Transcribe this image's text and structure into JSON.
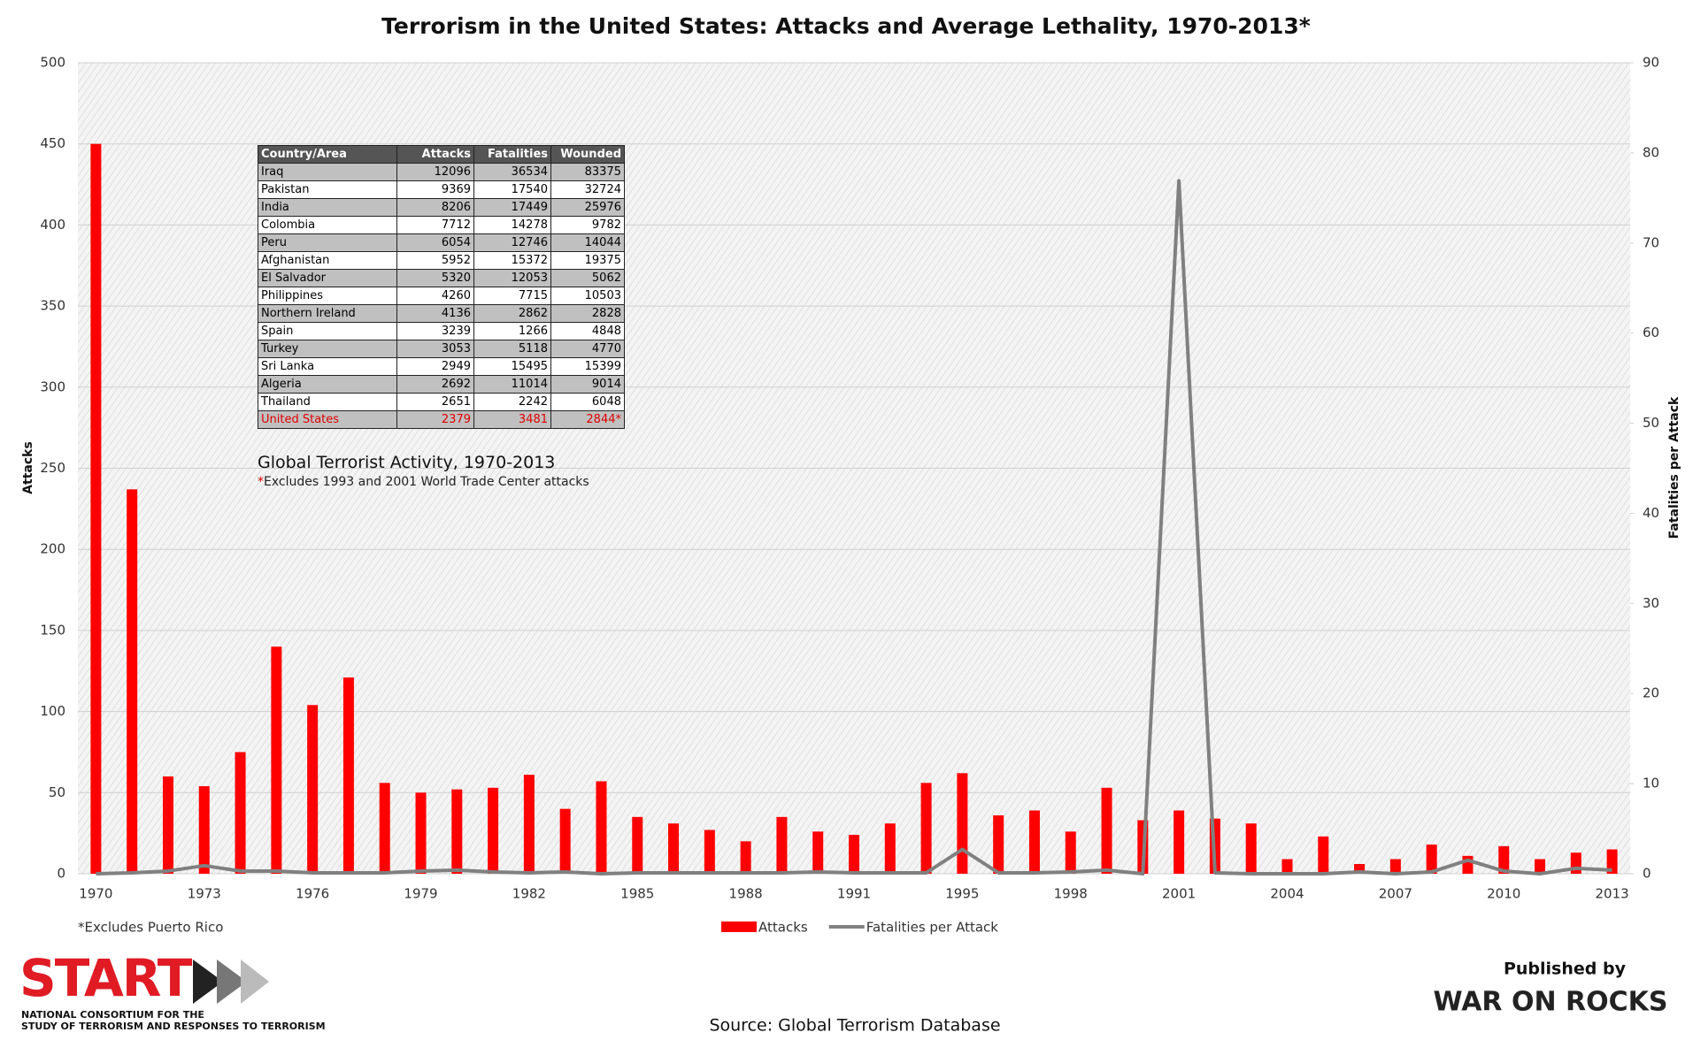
{
  "chart_data": {
    "type": "bar-line",
    "title": "Terrorism in the United States: Attacks and Average Lethality, 1970-2013*",
    "ylabel": "Attacks",
    "y2label": "Fatalities per Attack",
    "footnote": "*Excludes Puerto Rico",
    "source": "Source: Global Terrorism Database",
    "categories": [
      "1970",
      null,
      null,
      "1973",
      null,
      null,
      "1976",
      null,
      null,
      "1979",
      null,
      null,
      "1982",
      null,
      null,
      "1985",
      null,
      null,
      "1988",
      null,
      null,
      "1991",
      null,
      null,
      "1995",
      null,
      null,
      "1998",
      null,
      null,
      "2001",
      null,
      null,
      "2004",
      null,
      null,
      "2007",
      null,
      null,
      "2010",
      null,
      null,
      "2013"
    ],
    "series": [
      {
        "name": "Attacks",
        "type": "bar",
        "color": "#ff0000",
        "values": [
          450,
          237,
          60,
          54,
          75,
          140,
          104,
          121,
          56,
          50,
          52,
          53,
          61,
          40,
          57,
          35,
          31,
          27,
          20,
          35,
          26,
          24,
          31,
          56,
          62,
          36,
          39,
          26,
          53,
          33,
          39,
          34,
          31,
          9,
          23,
          6,
          9,
          18,
          11,
          17,
          9,
          13,
          15
        ]
      },
      {
        "name": "Fatalities per Attack",
        "type": "line",
        "axis": "y2",
        "color": "#808080",
        "values": [
          0,
          0.1,
          0.3,
          0.9,
          0.3,
          0.3,
          0.1,
          0.1,
          0.1,
          0.3,
          0.4,
          0.2,
          0.1,
          0.2,
          0,
          0.1,
          0.1,
          0.1,
          0.1,
          0.1,
          0.2,
          0.1,
          0.1,
          0.1,
          2.7,
          0.1,
          0.1,
          0.2,
          0.4,
          0,
          76.9,
          0.1,
          0,
          0,
          0,
          0.2,
          0,
          0.2,
          1.5,
          0.3,
          0,
          0.6,
          0.4
        ]
      }
    ],
    "ylim": [
      0,
      500
    ],
    "yticks": [
      0,
      50,
      100,
      150,
      200,
      250,
      300,
      350,
      400,
      450,
      500
    ],
    "y2lim": [
      0,
      90
    ],
    "y2ticks": [
      0,
      10,
      20,
      30,
      40,
      50,
      60,
      70,
      80,
      90
    ],
    "grid": true,
    "legend": "bottom"
  },
  "table": {
    "caption": "Global Terrorist Activity, 1970-2013",
    "note_marker": "*",
    "note": "Excludes 1993 and 2001 World Trade Center attacks",
    "highlight_row": 14,
    "highlight_color": "#e00000",
    "header": [
      "Country/Area",
      "Attacks",
      "Fatalities",
      "Wounded"
    ],
    "rows": [
      [
        "Iraq",
        12096,
        36534,
        83375
      ],
      [
        "Pakistan",
        9369,
        17540,
        32724
      ],
      [
        "India",
        8206,
        17449,
        25976
      ],
      [
        "Colombia",
        7712,
        14278,
        9782
      ],
      [
        "Peru",
        6054,
        12746,
        14044
      ],
      [
        "Afghanistan",
        5952,
        15372,
        19375
      ],
      [
        "El Salvador",
        5320,
        12053,
        5062
      ],
      [
        "Philippines",
        4260,
        7715,
        10503
      ],
      [
        "Northern Ireland",
        4136,
        2862,
        2828
      ],
      [
        "Spain",
        3239,
        1266,
        4848
      ],
      [
        "Turkey",
        3053,
        5118,
        4770
      ],
      [
        "Sri Lanka",
        2949,
        15495,
        15399
      ],
      [
        "Algeria",
        2692,
        11014,
        9014
      ],
      [
        "Thailand",
        2651,
        2242,
        6048
      ],
      [
        "United States",
        2379,
        3481,
        "2844*"
      ]
    ]
  },
  "logos": {
    "start": "START",
    "start_line1": "NATIONAL CONSORTIUM FOR THE",
    "start_line2": "STUDY OF TERRORISM AND RESPONSES TO TERRORISM",
    "published_by": "Published by",
    "war_on_rocks": "WAR ON ROCKS"
  }
}
